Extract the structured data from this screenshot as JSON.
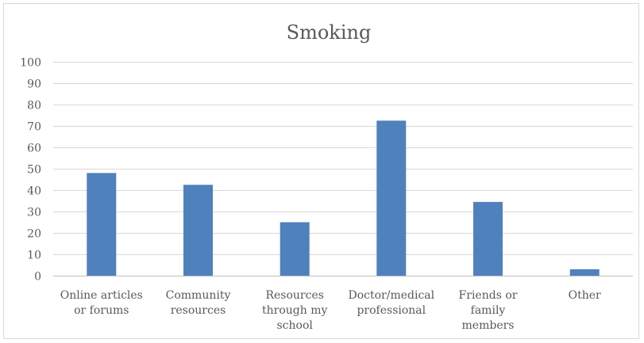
{
  "chart_data": {
    "type": "bar",
    "title": "Smoking",
    "categories": [
      [
        "Online articles",
        "or forums"
      ],
      [
        "Community",
        "resources"
      ],
      [
        "Resources",
        "through my",
        "school"
      ],
      [
        "Doctor/medical",
        "professional"
      ],
      [
        "Friends or",
        "family",
        "members"
      ],
      [
        "Other"
      ]
    ],
    "values": [
      48,
      42.5,
      25,
      72.5,
      34.5,
      3
    ],
    "ylim": [
      0,
      100
    ],
    "yticks": [
      0,
      10,
      20,
      30,
      40,
      50,
      60,
      70,
      80,
      90,
      100
    ],
    "grid": true,
    "legend": "none",
    "bar_color": "#4f81bd"
  }
}
